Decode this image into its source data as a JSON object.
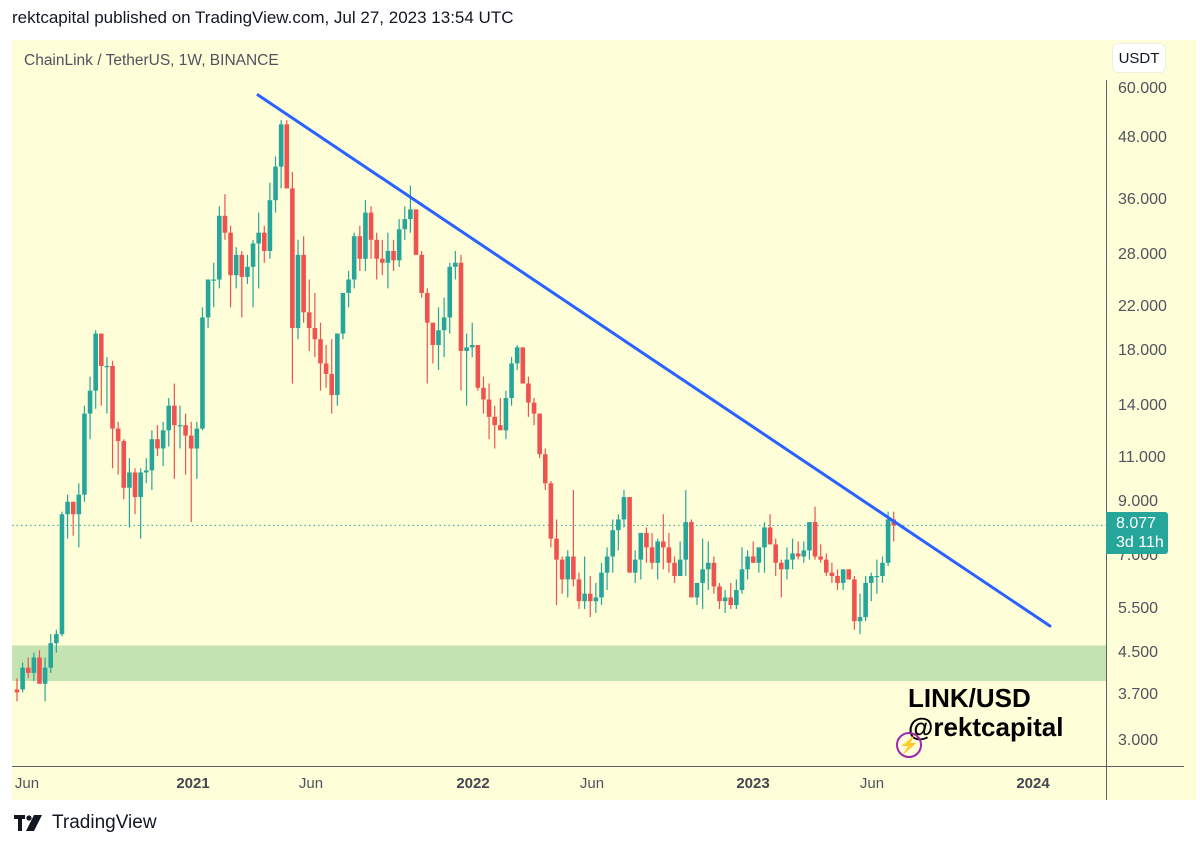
{
  "header": {
    "text": "rektcapital published on TradingView.com, Jul 27, 2023 13:54 UTC"
  },
  "chart": {
    "symbol_title": "ChainLink / TetherUS, 1W, BINANCE",
    "currency": "USDT",
    "last_price": "8.077",
    "countdown": "3d 11h",
    "watermark_line1": "LINK/USD",
    "watermark_line2": "@rektcapital",
    "bolt_icon": "⚡"
  },
  "footer": {
    "brand": "TradingView"
  },
  "colors": {
    "background": "#fefed9",
    "up": "#26a69a",
    "down": "#ef5350",
    "trendline": "#2962ff",
    "support_zone": "#c3e3b0",
    "last_price_badge": "#26a69a"
  },
  "chart_data": {
    "type": "candlestick",
    "title": "ChainLink / TetherUS, 1W, BINANCE",
    "xlabel": "",
    "ylabel": "USDT",
    "scale": "log",
    "ylim": [
      2.8,
      62
    ],
    "y_ticks": [
      "60.000",
      "48.000",
      "36.000",
      "28.000",
      "22.000",
      "18.000",
      "14.000",
      "11.000",
      "9.000",
      "7.000",
      "5.500",
      "4.500",
      "3.700",
      "3.000"
    ],
    "x_ticks": [
      "Jun",
      "2021",
      "Jun",
      "2022",
      "Jun",
      "2023",
      "Jun",
      "2024"
    ],
    "last_price": 8.077,
    "annotations": [
      {
        "type": "trendline",
        "description": "Descending resistance trendline from May 2021 high",
        "from": {
          "date": "2021-04",
          "price": 60
        },
        "to": {
          "date": "2023-11",
          "price": 5.1
        }
      },
      {
        "type": "zone",
        "description": "Green support zone",
        "price_low": 3.95,
        "price_high": 4.65
      },
      {
        "type": "horizontal_dotted",
        "price": 8.077
      }
    ],
    "candles_ohlc_approx": [
      [
        3.8,
        4.0,
        3.6,
        3.75
      ],
      [
        3.8,
        4.3,
        3.75,
        4.2
      ],
      [
        4.2,
        4.4,
        4.0,
        4.1
      ],
      [
        4.1,
        4.5,
        3.95,
        4.4
      ],
      [
        4.4,
        4.55,
        3.9,
        3.9
      ],
      [
        3.9,
        4.4,
        3.6,
        4.2
      ],
      [
        4.2,
        4.9,
        4.1,
        4.7
      ],
      [
        4.7,
        5.0,
        4.5,
        4.9
      ],
      [
        4.9,
        8.6,
        4.85,
        8.5
      ],
      [
        8.5,
        9.3,
        7.6,
        9.0
      ],
      [
        9.0,
        9.0,
        7.7,
        8.5
      ],
      [
        8.5,
        9.8,
        7.3,
        9.3
      ],
      [
        9.3,
        14.0,
        9.0,
        13.5
      ],
      [
        13.5,
        16.0,
        12.0,
        15.0
      ],
      [
        15.0,
        19.8,
        13.8,
        19.5
      ],
      [
        19.5,
        19.0,
        14.0,
        16.8
      ],
      [
        16.8,
        17.5,
        13.5,
        16.8
      ],
      [
        16.8,
        17.2,
        10.5,
        12.6
      ],
      [
        12.6,
        13.0,
        10.2,
        11.9
      ],
      [
        11.9,
        12.0,
        9.1,
        9.6
      ],
      [
        9.6,
        11.0,
        8.0,
        10.3
      ],
      [
        10.3,
        10.5,
        8.5,
        9.2
      ],
      [
        9.2,
        10.5,
        7.6,
        10.3
      ],
      [
        10.3,
        11.0,
        9.8,
        10.4
      ],
      [
        10.4,
        12.5,
        9.5,
        12.0
      ],
      [
        12.0,
        12.8,
        11.1,
        11.5
      ],
      [
        11.5,
        13.0,
        10.6,
        12.5
      ],
      [
        12.5,
        14.5,
        11.6,
        14.0
      ],
      [
        14.0,
        15.5,
        10.0,
        12.8
      ],
      [
        12.8,
        14.0,
        11.5,
        12.8
      ],
      [
        12.8,
        13.5,
        10.2,
        12.2
      ],
      [
        12.2,
        13.0,
        8.2,
        11.5
      ],
      [
        11.5,
        13.0,
        10.0,
        12.6
      ],
      [
        12.6,
        22.0,
        12.5,
        21.0
      ],
      [
        21.0,
        24.5,
        20.0,
        25.0
      ],
      [
        25.0,
        27.0,
        22.0,
        25.0
      ],
      [
        25.0,
        35.0,
        24.0,
        33.5
      ],
      [
        33.5,
        37.0,
        30.0,
        31.0
      ],
      [
        31.0,
        32.0,
        22.0,
        25.5
      ],
      [
        25.5,
        29.0,
        24.0,
        28.0
      ],
      [
        28.0,
        28.5,
        21.0,
        25.3
      ],
      [
        25.3,
        28.0,
        24.5,
        26.5
      ],
      [
        26.5,
        30.0,
        22.0,
        29.5
      ],
      [
        29.5,
        34.0,
        24.0,
        31.0
      ],
      [
        31.0,
        32.0,
        27.0,
        28.5
      ],
      [
        28.5,
        39.0,
        27.5,
        36.0
      ],
      [
        36.0,
        44.0,
        34.0,
        42.0
      ],
      [
        42.0,
        52.0,
        38.0,
        51.0
      ],
      [
        51.0,
        52.0,
        39.0,
        38.0
      ],
      [
        38.0,
        41.0,
        15.5,
        20.0
      ],
      [
        20.0,
        30.0,
        19.0,
        28.0
      ],
      [
        28.0,
        30.5,
        20.5,
        21.5
      ],
      [
        21.5,
        25.0,
        18.0,
        20.0
      ],
      [
        20.0,
        23.5,
        17.5,
        19.0
      ],
      [
        19.0,
        20.5,
        15.0,
        17.0
      ],
      [
        17.0,
        18.5,
        15.2,
        16.2
      ],
      [
        16.2,
        19.0,
        13.5,
        14.7
      ],
      [
        14.7,
        19.0,
        14.0,
        19.5
      ],
      [
        19.5,
        22.5,
        19.0,
        23.5
      ],
      [
        23.5,
        26.0,
        22.0,
        25.0
      ],
      [
        25.0,
        31.0,
        24.0,
        30.5
      ],
      [
        30.5,
        32.0,
        26.0,
        27.5
      ],
      [
        27.5,
        36.0,
        26.0,
        34.0
      ],
      [
        34.0,
        35.0,
        27.5,
        30.0
      ],
      [
        30.0,
        31.0,
        25.0,
        27.5
      ],
      [
        27.5,
        30.0,
        25.5,
        27.0
      ],
      [
        27.0,
        31.0,
        24.0,
        28.5
      ],
      [
        28.5,
        30.0,
        26.0,
        27.3
      ],
      [
        27.3,
        33.0,
        26.5,
        31.5
      ],
      [
        31.5,
        35.0,
        30.0,
        33.0
      ],
      [
        33.0,
        38.5,
        31.0,
        34.5
      ],
      [
        34.5,
        34.0,
        29.0,
        28.0
      ],
      [
        28.0,
        28.5,
        23.0,
        23.5
      ],
      [
        23.5,
        24.0,
        15.5,
        20.5
      ],
      [
        20.5,
        20.0,
        17.0,
        18.5
      ],
      [
        18.5,
        22.0,
        16.5,
        19.8
      ],
      [
        19.8,
        23.0,
        17.5,
        21.0
      ],
      [
        21.0,
        27.0,
        19.5,
        26.5
      ],
      [
        26.5,
        28.5,
        25.0,
        27.0
      ],
      [
        27.0,
        28.0,
        15.0,
        18.0
      ],
      [
        18.0,
        19.5,
        14.0,
        18.3
      ],
      [
        18.3,
        20.5,
        17.5,
        18.5
      ],
      [
        18.5,
        17.8,
        15.0,
        15.2
      ],
      [
        15.2,
        16.0,
        13.5,
        14.4
      ],
      [
        14.4,
        15.5,
        12.0,
        13.3
      ],
      [
        13.3,
        14.0,
        11.5,
        12.8
      ],
      [
        12.8,
        14.5,
        12.5,
        12.5
      ],
      [
        12.5,
        15.0,
        12.0,
        14.5
      ],
      [
        14.5,
        17.5,
        14.0,
        17.0
      ],
      [
        17.0,
        18.5,
        16.5,
        18.3
      ],
      [
        18.3,
        18.3,
        15.5,
        15.5
      ],
      [
        15.5,
        16.0,
        13.3,
        14.2
      ],
      [
        14.2,
        14.5,
        12.8,
        13.5
      ],
      [
        13.5,
        13.0,
        11.0,
        11.2
      ],
      [
        11.2,
        11.5,
        9.5,
        9.8
      ],
      [
        9.8,
        9.9,
        7.3,
        7.6
      ],
      [
        7.6,
        8.3,
        5.6,
        6.9
      ],
      [
        6.9,
        7.0,
        5.9,
        6.3
      ],
      [
        6.3,
        7.2,
        5.8,
        7.0
      ],
      [
        7.0,
        9.5,
        6.1,
        6.3
      ],
      [
        6.3,
        6.5,
        5.5,
        5.7
      ],
      [
        5.7,
        7.0,
        5.5,
        5.9
      ],
      [
        5.9,
        6.4,
        5.3,
        5.7
      ],
      [
        5.7,
        6.2,
        5.4,
        5.8
      ],
      [
        5.8,
        6.8,
        5.6,
        6.5
      ],
      [
        6.5,
        7.3,
        6.0,
        7.0
      ],
      [
        7.0,
        8.3,
        6.5,
        7.9
      ],
      [
        7.9,
        8.5,
        7.2,
        8.3
      ],
      [
        8.3,
        9.5,
        8.0,
        9.2
      ],
      [
        9.2,
        9.0,
        6.5,
        6.5
      ],
      [
        6.5,
        7.2,
        6.2,
        6.9
      ],
      [
        6.9,
        7.5,
        6.3,
        7.8
      ],
      [
        7.8,
        8.0,
        6.8,
        7.3
      ],
      [
        7.3,
        7.8,
        6.6,
        6.8
      ],
      [
        6.8,
        7.6,
        6.3,
        7.5
      ],
      [
        7.5,
        8.5,
        6.6,
        7.3
      ],
      [
        7.3,
        7.8,
        6.5,
        6.8
      ],
      [
        6.8,
        7.0,
        6.2,
        6.4
      ],
      [
        6.4,
        7.5,
        6.4,
        6.9
      ],
      [
        6.9,
        9.5,
        6.4,
        8.2
      ],
      [
        8.2,
        8.3,
        5.8,
        5.8
      ],
      [
        5.8,
        6.0,
        5.6,
        6.2
      ],
      [
        6.2,
        7.6,
        5.5,
        6.6
      ],
      [
        6.6,
        7.5,
        6.0,
        6.8
      ],
      [
        6.8,
        7.0,
        5.9,
        6.1
      ],
      [
        6.1,
        6.2,
        5.5,
        5.7
      ],
      [
        5.7,
        6.0,
        5.4,
        5.8
      ],
      [
        5.8,
        6.2,
        5.5,
        5.6
      ],
      [
        5.6,
        6.3,
        5.5,
        6.0
      ],
      [
        6.0,
        7.3,
        5.9,
        6.6
      ],
      [
        6.6,
        7.2,
        6.3,
        7.0
      ],
      [
        7.0,
        7.5,
        6.8,
        6.8
      ],
      [
        6.8,
        7.0,
        6.5,
        7.3
      ],
      [
        7.3,
        8.2,
        6.5,
        8.0
      ],
      [
        8.0,
        8.5,
        7.4,
        7.4
      ],
      [
        7.4,
        7.6,
        6.4,
        6.8
      ],
      [
        6.8,
        6.9,
        5.8,
        6.6
      ],
      [
        6.6,
        7.3,
        6.3,
        6.9
      ],
      [
        6.9,
        7.6,
        6.6,
        7.1
      ],
      [
        7.1,
        7.5,
        6.9,
        7.0
      ],
      [
        7.0,
        7.5,
        6.8,
        7.2
      ],
      [
        7.2,
        8.2,
        6.9,
        8.2
      ],
      [
        8.2,
        8.8,
        6.9,
        7.0
      ],
      [
        7.0,
        7.4,
        6.8,
        6.9
      ],
      [
        6.9,
        7.1,
        6.4,
        6.5
      ],
      [
        6.5,
        6.8,
        6.2,
        6.4
      ],
      [
        6.4,
        6.6,
        6.0,
        6.2
      ],
      [
        6.2,
        6.6,
        6.0,
        6.6
      ],
      [
        6.6,
        6.6,
        6.3,
        6.3
      ],
      [
        6.3,
        6.4,
        5.0,
        5.2
      ],
      [
        5.2,
        5.9,
        4.9,
        5.3
      ],
      [
        5.3,
        6.4,
        5.2,
        6.2
      ],
      [
        6.2,
        6.5,
        5.7,
        6.4
      ],
      [
        6.4,
        6.9,
        5.9,
        6.4
      ],
      [
        6.4,
        7.0,
        6.2,
        6.8
      ],
      [
        6.8,
        8.6,
        6.7,
        8.3
      ],
      [
        8.3,
        8.6,
        7.5,
        8.077
      ]
    ]
  }
}
